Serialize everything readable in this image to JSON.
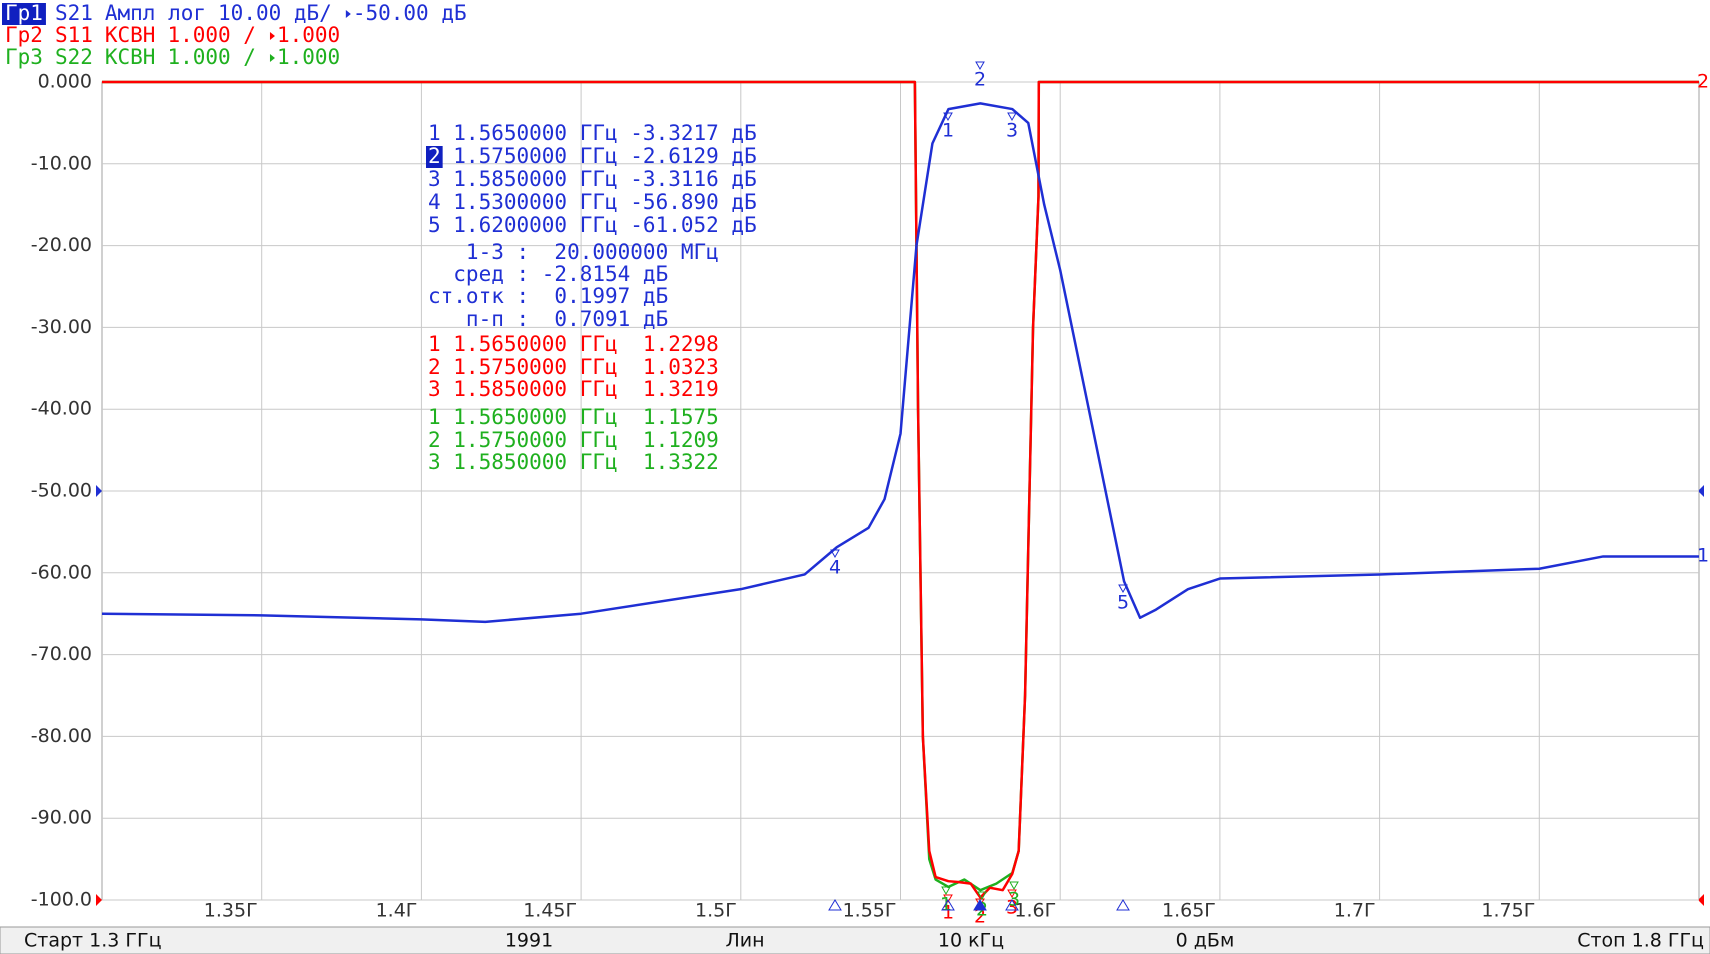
{
  "traces": [
    {
      "label": "Гр1",
      "format": "Ампл лог",
      "scale": "10.00 дБ/",
      "ref": "-50.00 дБ",
      "active": true
    },
    {
      "label": "Гр2",
      "format": "КСВН",
      "scale": "1.000 /",
      "ref": "1.000",
      "active": false
    },
    {
      "label": "Гр3",
      "format": "КСВН",
      "scale": "1.000 /",
      "ref": "1.000",
      "active": false
    }
  ],
  "chart_data": {
    "type": "line",
    "xlim": [
      1.3,
      1.8
    ],
    "xticks": [
      {
        "value": 1.35,
        "label": "1.35Г"
      },
      {
        "value": 1.4,
        "label": "1.4Г"
      },
      {
        "value": 1.45,
        "label": "1.45Г"
      },
      {
        "value": 1.5,
        "label": "1.5Г"
      },
      {
        "value": 1.55,
        "label": "1.55Г"
      },
      {
        "value": 1.6,
        "label": "1.6Г"
      },
      {
        "value": 1.65,
        "label": "1.65Г"
      },
      {
        "value": 1.7,
        "label": "1.7Г"
      },
      {
        "value": 1.75,
        "label": "1.75Г"
      }
    ],
    "ylim": [
      -100,
      0
    ],
    "yticks": [
      {
        "value": 0,
        "label": "0.000"
      },
      {
        "value": -10,
        "label": "-10.00"
      },
      {
        "value": -20,
        "label": "-20.00"
      },
      {
        "value": -30,
        "label": "-30.00"
      },
      {
        "value": -40,
        "label": "-40.00"
      },
      {
        "value": -50,
        "label": "-50.00"
      },
      {
        "value": -60,
        "label": "-60.00"
      },
      {
        "value": -70,
        "label": "-70.00"
      },
      {
        "value": -80,
        "label": "-80.00"
      },
      {
        "value": -90,
        "label": "-90.00"
      },
      {
        "value": -100,
        "label": "-100.0"
      }
    ],
    "y2lim": [
      1,
      11
    ],
    "grid": true,
    "series": [
      {
        "name": "S21",
        "color": "#1f2fd4",
        "end_label": "1",
        "flags": [
          "1",
          "2",
          "3",
          "4",
          "5"
        ],
        "x": [
          1.3,
          1.35,
          1.4,
          1.42,
          1.45,
          1.5,
          1.52,
          1.53,
          1.54,
          1.545,
          1.55,
          1.555,
          1.56,
          1.565,
          1.575,
          1.585,
          1.59,
          1.595,
          1.6,
          1.61,
          1.62,
          1.625,
          1.63,
          1.64,
          1.65,
          1.7,
          1.75,
          1.77,
          1.8
        ],
        "values": [
          -65,
          -65.2,
          -65.7,
          -66,
          -65,
          -62,
          -60.2,
          -56.89,
          -54.5,
          -51,
          -43,
          -20,
          -7.5,
          -3.32,
          -2.61,
          -3.31,
          -5,
          -15,
          -23,
          -42,
          -61.05,
          -65.5,
          -64.5,
          -62,
          -60.7,
          -60.2,
          -59.5,
          -58,
          -58
        ]
      },
      {
        "name": "S11",
        "color": "#ff0000",
        "axis": "y2",
        "end_label": "2",
        "flags": [
          "1",
          "2",
          "3"
        ],
        "x": [
          1.3,
          1.5545,
          1.5555,
          1.557,
          1.559,
          1.561,
          1.565,
          1.568,
          1.572,
          1.575,
          1.578,
          1.582,
          1.585,
          1.587,
          1.589,
          1.5915,
          1.5932,
          1.5933,
          1.8
        ],
        "values": [
          11,
          11,
          7,
          3,
          1.6,
          1.28,
          1.23,
          1.22,
          1.2,
          1.03,
          1.15,
          1.12,
          1.32,
          1.6,
          3.5,
          8,
          9.6,
          11,
          11
        ]
      },
      {
        "name": "S22",
        "color": "#1fb01f",
        "axis": "y2",
        "flags": [
          "1",
          "2",
          "3"
        ],
        "x": [
          1.3,
          1.5545,
          1.5555,
          1.557,
          1.559,
          1.561,
          1.565,
          1.57,
          1.575,
          1.58,
          1.585,
          1.587,
          1.589,
          1.5915,
          1.5932,
          1.5933,
          1.8
        ],
        "values": [
          11,
          11,
          7,
          3,
          1.5,
          1.25,
          1.16,
          1.25,
          1.12,
          1.2,
          1.33,
          1.6,
          3.5,
          8,
          9.6,
          11,
          11
        ]
      }
    ]
  },
  "markers": [
    {
      "rows": [
        {
          "n": "1",
          "text": "1.5650000 ГГц -3.3217 дБ"
        },
        {
          "n": "2",
          "text": "1.5750000 ГГц -2.6129 дБ",
          "active": true
        },
        {
          "n": "3",
          "text": "1.5850000 ГГц -3.3116 дБ"
        },
        {
          "n": "4",
          "text": "1.5300000 ГГц -56.890 дБ"
        },
        {
          "n": "5",
          "text": "1.6200000 ГГц -61.052 дБ"
        }
      ],
      "stats": [
        "1-3 :  20.000000 МГц",
        "сред : -2.8154 дБ",
        "ст.отк :  0.1997 дБ",
        "п-п :  0.7091 дБ"
      ]
    },
    {
      "rows": [
        {
          "n": "1",
          "text": "1.5650000 ГГц  1.2298"
        },
        {
          "n": "2",
          "text": "1.5750000 ГГц  1.0323"
        },
        {
          "n": "3",
          "text": "1.5850000 ГГц  1.3219"
        }
      ]
    },
    {
      "rows": [
        {
          "n": "1",
          "text": "1.5650000 ГГц  1.1575"
        },
        {
          "n": "2",
          "text": "1.5750000 ГГц  1.1209"
        },
        {
          "n": "3",
          "text": "1.5850000 ГГц  1.3322"
        }
      ]
    }
  ],
  "status_bar": [
    "Старт 1.3 ГГц",
    "1991",
    "Лин",
    "10 кГц",
    "0 дБм",
    "Стоп 1.8 ГГц"
  ]
}
